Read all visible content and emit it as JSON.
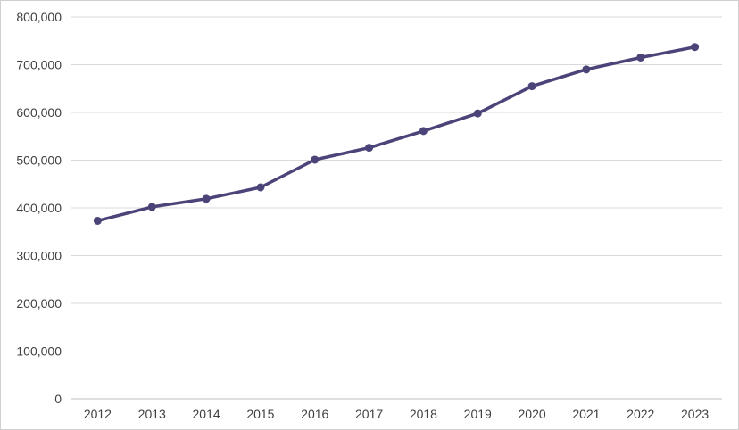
{
  "chart_data": {
    "type": "line",
    "title": "",
    "xlabel": "",
    "ylabel": "",
    "categories": [
      "2012",
      "2013",
      "2014",
      "2015",
      "2016",
      "2017",
      "2018",
      "2019",
      "2020",
      "2021",
      "2022",
      "2023"
    ],
    "series": [
      {
        "values": [
          373000,
          402000,
          419000,
          443000,
          501000,
          526000,
          561000,
          598000,
          655000,
          690000,
          715000,
          737000
        ],
        "color": "#4b4479"
      }
    ],
    "ylim": [
      0,
      800000
    ],
    "yticks": [
      0,
      100000,
      200000,
      300000,
      400000,
      500000,
      600000,
      700000,
      800000
    ],
    "ytick_labels": [
      "0",
      "100,000",
      "200,000",
      "300,000",
      "400,000",
      "500,000",
      "600,000",
      "700,000",
      "800,000"
    ],
    "grid": true,
    "legend": "none"
  }
}
